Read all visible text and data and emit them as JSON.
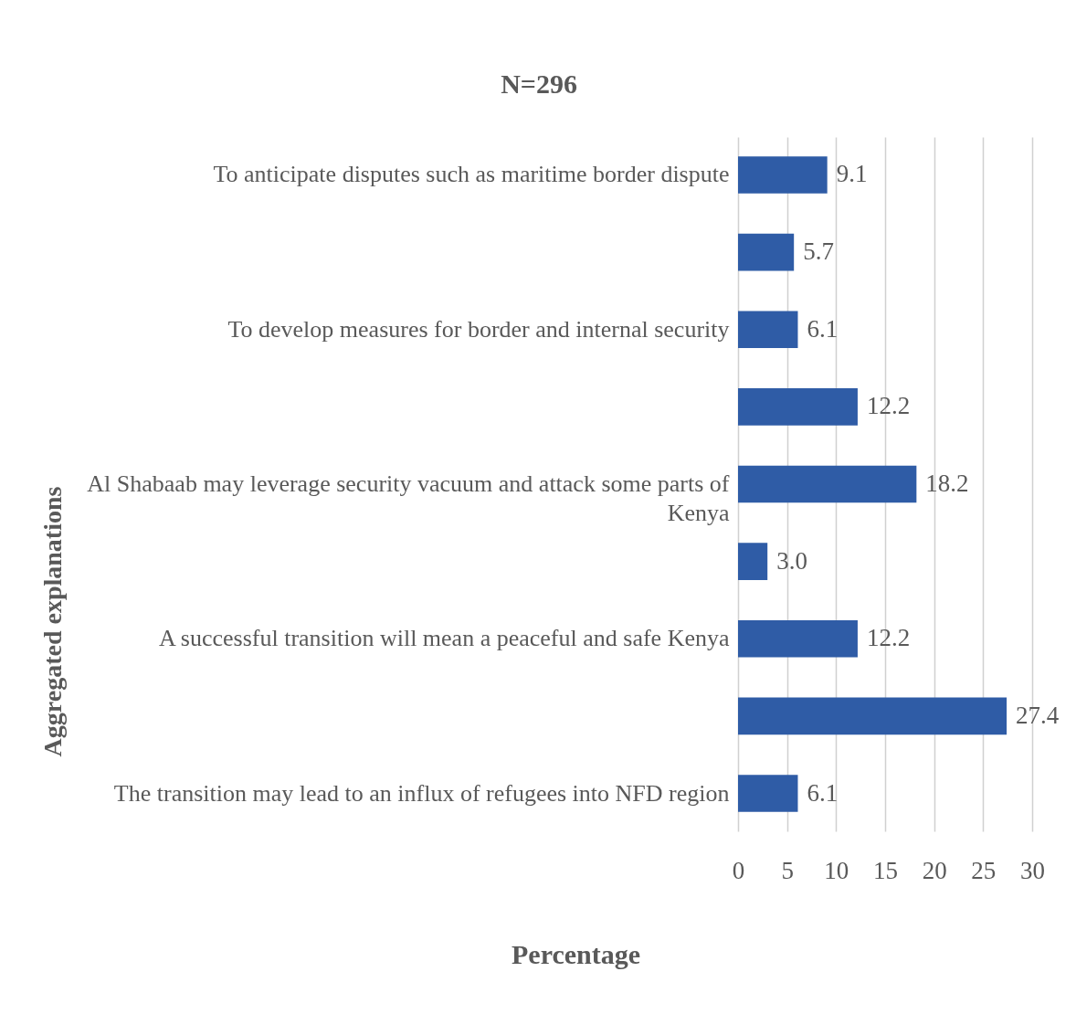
{
  "chart_data": {
    "type": "bar",
    "orientation": "horizontal",
    "title": "N=296",
    "xlabel": "Percentage",
    "ylabel": "Aggregated explanations",
    "categories": [
      "To anticipate disputes such as maritime border dispute",
      null,
      "To develop measures for border and internal security",
      null,
      "Al Shabaab may leverage security vacuum and attack some parts of Kenya",
      null,
      "A successful transition will mean a peaceful and safe Kenya",
      null,
      "The transition may lead to an influx of refugees into NFD region"
    ],
    "values": [
      9.1,
      5.7,
      6.1,
      12.2,
      18.2,
      3.0,
      12.2,
      27.4,
      6.1
    ],
    "value_labels": [
      "9.1",
      "5.7",
      "6.1",
      "12.2",
      "18.2",
      "3.0",
      "12.2",
      "27.4",
      "6.1"
    ],
    "color": "#2f5ca6",
    "xlim": [
      0,
      30
    ],
    "xticks": [
      0,
      5,
      10,
      15,
      20,
      25,
      30
    ],
    "grid": "x"
  }
}
